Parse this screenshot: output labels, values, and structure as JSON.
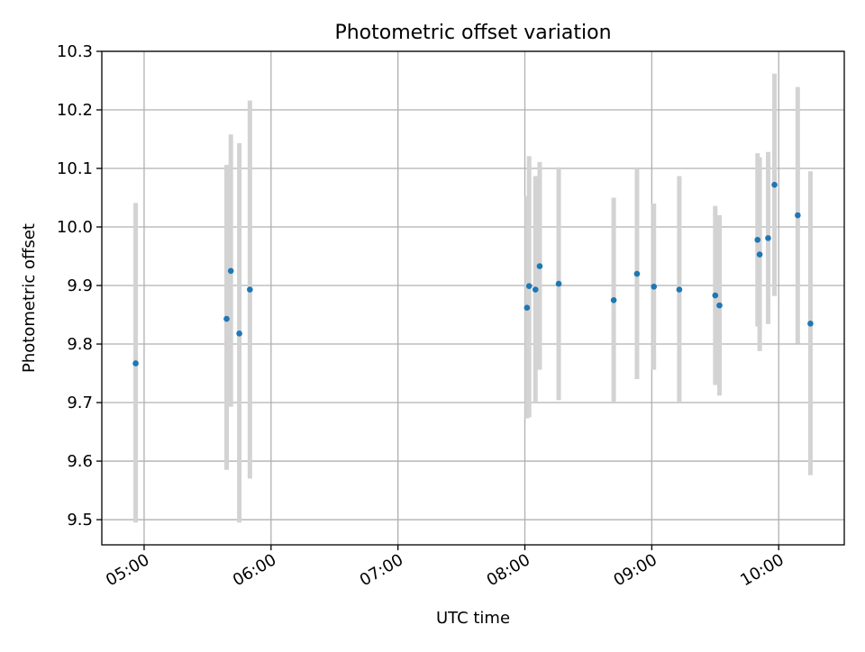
{
  "chart_data": {
    "type": "scatter",
    "title": "Photometric offset variation",
    "xlabel": "UTC time",
    "ylabel": "Photometric offset",
    "xlim": [
      "04:40",
      "10:31"
    ],
    "ylim": [
      9.457,
      10.3
    ],
    "x_ticks": [
      "05:00",
      "06:00",
      "07:00",
      "08:00",
      "09:00",
      "10:00"
    ],
    "y_ticks": [
      "9.5",
      "9.6",
      "9.7",
      "9.8",
      "9.9",
      "10.0",
      "10.1",
      "10.2",
      "10.3"
    ],
    "grid": true,
    "colors": {
      "point": "#1f77b4",
      "error_bar": "#d3d3d3",
      "grid": "#b0b0b0"
    },
    "series": [
      {
        "points": [
          {
            "x": "04:56",
            "y": 9.767,
            "ylow": 9.495,
            "yhigh": 10.041
          },
          {
            "x": "05:39",
            "y": 9.843,
            "ylow": 9.585,
            "yhigh": 10.106
          },
          {
            "x": "05:41",
            "y": 9.925,
            "ylow": 9.693,
            "yhigh": 10.158
          },
          {
            "x": "05:45",
            "y": 9.818,
            "ylow": 9.495,
            "yhigh": 10.143
          },
          {
            "x": "05:50",
            "y": 9.893,
            "ylow": 9.57,
            "yhigh": 10.216
          },
          {
            "x": "08:01",
            "y": 9.862,
            "ylow": 9.673,
            "yhigh": 10.053
          },
          {
            "x": "08:02",
            "y": 9.899,
            "ylow": 9.675,
            "yhigh": 10.121
          },
          {
            "x": "08:05",
            "y": 9.893,
            "ylow": 9.7,
            "yhigh": 10.087
          },
          {
            "x": "08:07",
            "y": 9.933,
            "ylow": 9.756,
            "yhigh": 10.111
          },
          {
            "x": "08:16",
            "y": 9.903,
            "ylow": 9.704,
            "yhigh": 10.102
          },
          {
            "x": "08:42",
            "y": 9.875,
            "ylow": 9.7,
            "yhigh": 10.05
          },
          {
            "x": "08:53",
            "y": 9.92,
            "ylow": 9.74,
            "yhigh": 10.1
          },
          {
            "x": "09:01",
            "y": 9.898,
            "ylow": 9.756,
            "yhigh": 10.04
          },
          {
            "x": "09:13",
            "y": 9.893,
            "ylow": 9.7,
            "yhigh": 10.087
          },
          {
            "x": "09:30",
            "y": 9.883,
            "ylow": 9.73,
            "yhigh": 10.036
          },
          {
            "x": "09:32",
            "y": 9.866,
            "ylow": 9.712,
            "yhigh": 10.02
          },
          {
            "x": "09:50",
            "y": 9.978,
            "ylow": 9.83,
            "yhigh": 10.126
          },
          {
            "x": "09:51",
            "y": 9.953,
            "ylow": 9.788,
            "yhigh": 10.119
          },
          {
            "x": "09:55",
            "y": 9.981,
            "ylow": 9.834,
            "yhigh": 10.128
          },
          {
            "x": "09:58",
            "y": 10.072,
            "ylow": 9.882,
            "yhigh": 10.262
          },
          {
            "x": "10:09",
            "y": 10.02,
            "ylow": 9.801,
            "yhigh": 10.239
          },
          {
            "x": "10:15",
            "y": 9.835,
            "ylow": 9.576,
            "yhigh": 10.095
          }
        ]
      }
    ]
  }
}
